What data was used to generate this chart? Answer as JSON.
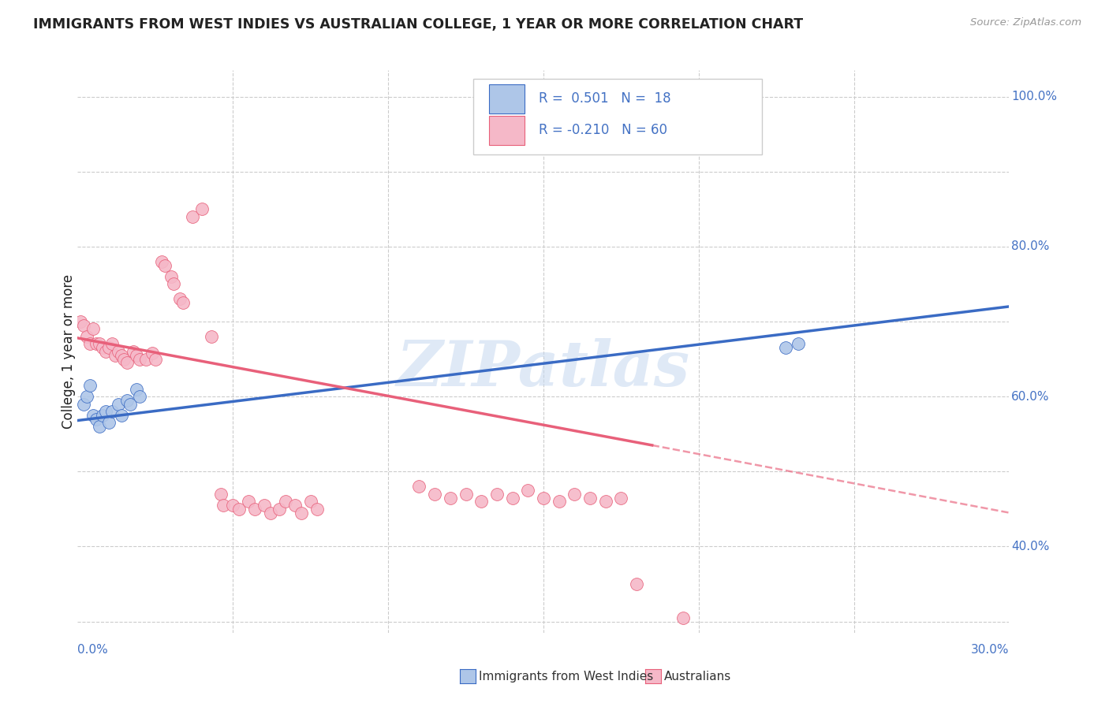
{
  "title": "IMMIGRANTS FROM WEST INDIES VS AUSTRALIAN COLLEGE, 1 YEAR OR MORE CORRELATION CHART",
  "source": "Source: ZipAtlas.com",
  "ylabel": "College, 1 year or more",
  "legend_label1": "Immigrants from West Indies",
  "legend_label2": "Australians",
  "xmin": 0.0,
  "xmax": 0.3,
  "ymin": 0.285,
  "ymax": 1.035,
  "yticks": [
    0.3,
    0.4,
    0.5,
    0.6,
    0.7,
    0.8,
    0.9,
    1.0
  ],
  "ytick_right_labels": [
    "",
    "40.0%",
    "",
    "60.0%",
    "",
    "80.0%",
    "",
    "100.0%"
  ],
  "blue_dots": [
    [
      0.002,
      0.59
    ],
    [
      0.003,
      0.6
    ],
    [
      0.004,
      0.615
    ],
    [
      0.005,
      0.575
    ],
    [
      0.006,
      0.57
    ],
    [
      0.007,
      0.56
    ],
    [
      0.008,
      0.575
    ],
    [
      0.009,
      0.58
    ],
    [
      0.01,
      0.565
    ],
    [
      0.011,
      0.58
    ],
    [
      0.013,
      0.59
    ],
    [
      0.014,
      0.575
    ],
    [
      0.016,
      0.595
    ],
    [
      0.017,
      0.59
    ],
    [
      0.019,
      0.61
    ],
    [
      0.02,
      0.6
    ],
    [
      0.228,
      0.665
    ],
    [
      0.232,
      0.67
    ]
  ],
  "pink_dots": [
    [
      0.001,
      0.7
    ],
    [
      0.002,
      0.695
    ],
    [
      0.003,
      0.68
    ],
    [
      0.004,
      0.67
    ],
    [
      0.005,
      0.69
    ],
    [
      0.006,
      0.67
    ],
    [
      0.007,
      0.67
    ],
    [
      0.008,
      0.665
    ],
    [
      0.009,
      0.66
    ],
    [
      0.01,
      0.665
    ],
    [
      0.011,
      0.67
    ],
    [
      0.012,
      0.655
    ],
    [
      0.013,
      0.66
    ],
    [
      0.014,
      0.655
    ],
    [
      0.015,
      0.65
    ],
    [
      0.016,
      0.645
    ],
    [
      0.018,
      0.66
    ],
    [
      0.019,
      0.655
    ],
    [
      0.02,
      0.65
    ],
    [
      0.022,
      0.65
    ],
    [
      0.024,
      0.658
    ],
    [
      0.025,
      0.65
    ],
    [
      0.027,
      0.78
    ],
    [
      0.028,
      0.775
    ],
    [
      0.03,
      0.76
    ],
    [
      0.031,
      0.75
    ],
    [
      0.033,
      0.73
    ],
    [
      0.034,
      0.725
    ],
    [
      0.037,
      0.84
    ],
    [
      0.04,
      0.85
    ],
    [
      0.043,
      0.68
    ],
    [
      0.046,
      0.47
    ],
    [
      0.047,
      0.455
    ],
    [
      0.05,
      0.455
    ],
    [
      0.052,
      0.45
    ],
    [
      0.055,
      0.46
    ],
    [
      0.057,
      0.45
    ],
    [
      0.06,
      0.455
    ],
    [
      0.062,
      0.445
    ],
    [
      0.065,
      0.45
    ],
    [
      0.067,
      0.46
    ],
    [
      0.07,
      0.455
    ],
    [
      0.072,
      0.445
    ],
    [
      0.075,
      0.46
    ],
    [
      0.077,
      0.45
    ],
    [
      0.11,
      0.48
    ],
    [
      0.115,
      0.47
    ],
    [
      0.12,
      0.465
    ],
    [
      0.125,
      0.47
    ],
    [
      0.13,
      0.46
    ],
    [
      0.135,
      0.47
    ],
    [
      0.14,
      0.465
    ],
    [
      0.145,
      0.475
    ],
    [
      0.15,
      0.465
    ],
    [
      0.155,
      0.46
    ],
    [
      0.16,
      0.47
    ],
    [
      0.165,
      0.465
    ],
    [
      0.17,
      0.46
    ],
    [
      0.175,
      0.465
    ],
    [
      0.18,
      0.35
    ],
    [
      0.195,
      0.305
    ]
  ],
  "blue_line": {
    "x0": 0.0,
    "y0": 0.568,
    "x1": 0.3,
    "y1": 0.72
  },
  "pink_line_solid": {
    "x0": 0.0,
    "y0": 0.678,
    "x1": 0.185,
    "y1": 0.535
  },
  "pink_line_dashed": {
    "x0": 0.185,
    "y0": 0.535,
    "x1": 0.3,
    "y1": 0.445
  },
  "watermark": "ZIPatlas",
  "bg_color": "#ffffff",
  "blue_dot_color": "#aec6e8",
  "pink_dot_color": "#f5b8c8",
  "blue_line_color": "#3a6bc4",
  "pink_line_color": "#e8607a",
  "grid_color": "#cccccc",
  "axis_label_color": "#4472c4",
  "title_color": "#222222"
}
